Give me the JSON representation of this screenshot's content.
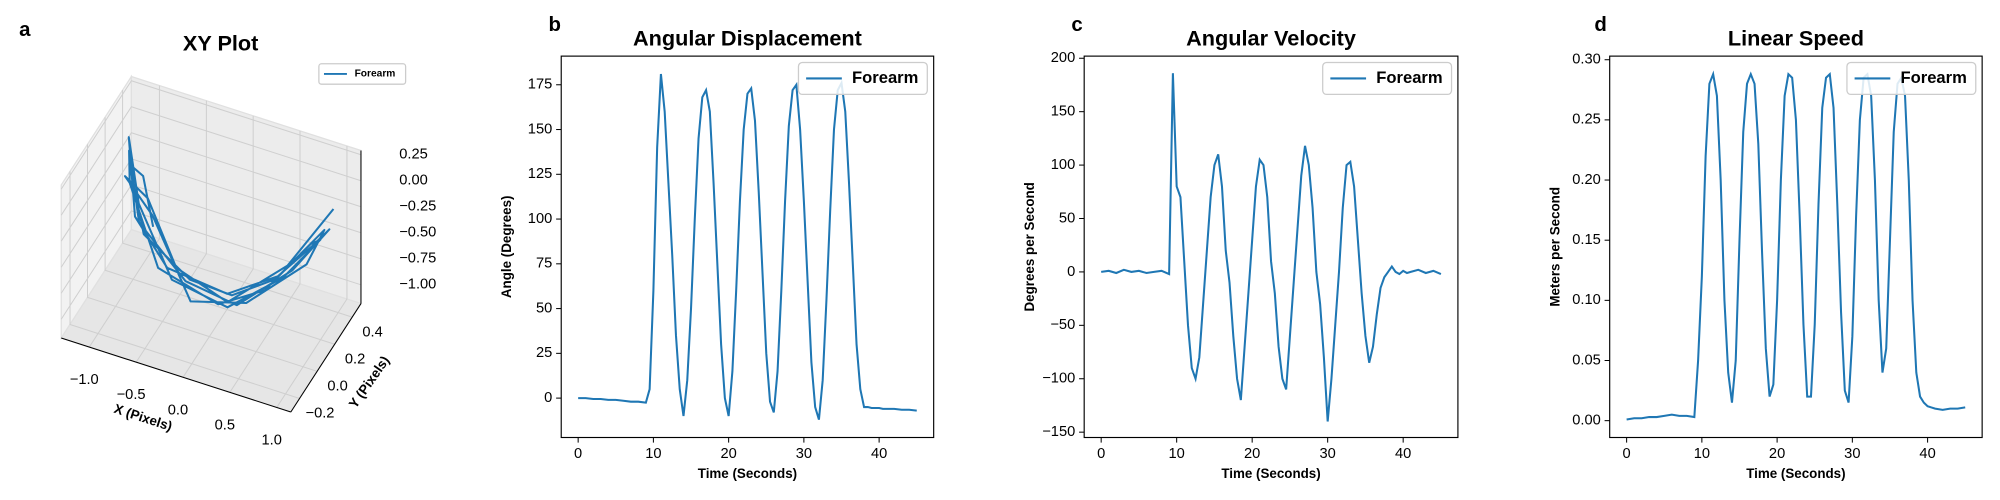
{
  "chart_data": [
    {
      "type": "line3d",
      "panel_label": "a",
      "title": "XY Plot",
      "xlabel": "X (Pixels)",
      "ylabel": "Y (Pixels)",
      "legend": "upper right",
      "xlim": [
        -1.3,
        1.15
      ],
      "ylim": [
        -0.3,
        0.5
      ],
      "zlim": [
        -1.18,
        0.29
      ],
      "xticks": [
        {
          "value": -1.0,
          "label": "−1.0"
        },
        {
          "value": -0.5,
          "label": "−0.5"
        },
        {
          "value": 0.0,
          "label": "0.0"
        },
        {
          "value": 0.5,
          "label": "0.5"
        },
        {
          "value": 1.0,
          "label": "1.0"
        }
      ],
      "yticks": [
        {
          "value": -0.2,
          "label": "−0.2"
        },
        {
          "value": 0.0,
          "label": "0.0"
        },
        {
          "value": 0.2,
          "label": "0.2"
        },
        {
          "value": 0.4,
          "label": "0.4"
        }
      ],
      "zticks": [
        {
          "value": 0.25,
          "label": "0.25"
        },
        {
          "value": 0.0,
          "label": "0.00"
        },
        {
          "value": -0.25,
          "label": "−0.25"
        },
        {
          "value": -0.5,
          "label": "−0.50"
        },
        {
          "value": -0.75,
          "label": "−0.75"
        },
        {
          "value": -1.0,
          "label": "−1.00"
        }
      ],
      "series": [
        {
          "name": "Forearm",
          "color": "#1f77b4",
          "x": [
            -0.6,
            -0.8,
            -0.9,
            -0.7,
            -0.3,
            0.1,
            0.5,
            0.85,
            1.0,
            0.7,
            0.2,
            -0.3,
            -0.75,
            -0.95,
            -0.85,
            -0.5,
            0.0,
            0.45,
            0.8,
            0.95,
            0.6,
            0.1,
            -0.4,
            -0.8,
            -1.0,
            -0.7,
            -0.45,
            0.05,
            0.55,
            0.9,
            0.85,
            0.3,
            -0.2,
            -0.7,
            -0.9,
            -0.75,
            -0.4,
            0.1,
            0.6,
            0.95
          ],
          "y": [
            0.0,
            0.1,
            0.05,
            0.0,
            0.1,
            0.15,
            0.2,
            0.25,
            0.3,
            0.2,
            0.1,
            0.05,
            0.0,
            0.1,
            0.0,
            -0.05,
            0.1,
            0.15,
            0.3,
            0.25,
            0.2,
            0.1,
            0.0,
            0.05,
            0.15,
            -0.1,
            0.0,
            0.15,
            0.2,
            0.35,
            0.2,
            0.1,
            0.0,
            0.1,
            0.0,
            0.1,
            0.05,
            0.1,
            0.25,
            0.4
          ],
          "z": [
            -0.3,
            0.0,
            0.15,
            -0.4,
            -0.85,
            -0.95,
            -0.75,
            -0.4,
            -0.25,
            -0.6,
            -0.95,
            -0.8,
            -0.3,
            0.2,
            0.05,
            -0.6,
            -1.0,
            -0.8,
            -0.45,
            -0.3,
            -0.7,
            -1.0,
            -0.75,
            -0.2,
            0.25,
            -0.1,
            -0.65,
            -0.95,
            -0.7,
            -0.35,
            -0.5,
            -0.9,
            -0.9,
            -0.35,
            0.1,
            -0.2,
            -0.7,
            -0.95,
            -0.65,
            -0.2
          ]
        }
      ]
    },
    {
      "type": "line",
      "panel_label": "b",
      "title": "Angular Displacement",
      "xlabel": "Time (Seconds)",
      "ylabel": "Angle (Degrees)",
      "legend": "upper right",
      "xlim": [
        -2.25,
        47.25
      ],
      "ylim": [
        -22,
        191
      ],
      "xticks": [
        0,
        10,
        20,
        30,
        40
      ],
      "yticks": [
        0,
        25,
        50,
        75,
        100,
        125,
        150,
        175
      ],
      "x": [
        0,
        1,
        2,
        3,
        4,
        5,
        6,
        7,
        8,
        9,
        9.5,
        10,
        10.5,
        11,
        11.5,
        12,
        12.5,
        13,
        13.5,
        14,
        14.5,
        15,
        15.5,
        16,
        16.5,
        17,
        17.5,
        18,
        18.5,
        19,
        19.5,
        20,
        20.5,
        21,
        21.5,
        22,
        22.5,
        23,
        23.5,
        24,
        24.5,
        25,
        25.5,
        26,
        26.5,
        27,
        27.5,
        28,
        28.5,
        29,
        29.5,
        30,
        30.5,
        31,
        31.5,
        32,
        32.5,
        33,
        33.5,
        34,
        34.5,
        35,
        35.5,
        36,
        36.5,
        37,
        37.5,
        38,
        38.5,
        39,
        39.5,
        40,
        40.5,
        41,
        42,
        43,
        44,
        45
      ],
      "series": [
        {
          "name": "Forearm",
          "color": "#1f77b4",
          "values": [
            0,
            0,
            -0.5,
            -0.5,
            -1,
            -1,
            -1.5,
            -2,
            -2,
            -2.5,
            5,
            60,
            140,
            181,
            160,
            120,
            80,
            35,
            5,
            -10,
            10,
            50,
            100,
            145,
            168,
            172,
            160,
            120,
            75,
            30,
            0,
            -10,
            15,
            60,
            110,
            150,
            170,
            173,
            155,
            115,
            70,
            25,
            -2,
            -8,
            15,
            60,
            110,
            152,
            172,
            175,
            150,
            110,
            65,
            20,
            -5,
            -12,
            10,
            55,
            105,
            150,
            172,
            176,
            160,
            120,
            75,
            30,
            5,
            -5,
            -5,
            -5.5,
            -5.5,
            -5.5,
            -6,
            -6,
            -6,
            -6.5,
            -6.5,
            -7
          ]
        }
      ]
    },
    {
      "type": "line",
      "panel_label": "c",
      "title": "Angular Velocity",
      "xlabel": "Time (Seconds)",
      "ylabel": "Degrees per Second",
      "legend": "upper right",
      "xlim": [
        -2.25,
        47.25
      ],
      "ylim": [
        -155,
        202
      ],
      "xticks": [
        0,
        10,
        20,
        30,
        40
      ],
      "yticks": [
        {
          "value": -150,
          "label": "−150"
        },
        {
          "value": -100,
          "label": "−100"
        },
        {
          "value": -50,
          "label": "−50"
        },
        0,
        50,
        100,
        150,
        200
      ],
      "x": [
        0,
        1,
        2,
        3,
        4,
        5,
        6,
        7,
        8,
        9,
        9.5,
        10,
        10.5,
        11,
        11.5,
        12,
        12.5,
        13,
        13.5,
        14,
        14.5,
        15,
        15.5,
        16,
        16.5,
        17,
        17.5,
        18,
        18.5,
        19,
        19.5,
        20,
        20.5,
        21,
        21.5,
        22,
        22.5,
        23,
        23.5,
        24,
        24.5,
        25,
        25.5,
        26,
        26.5,
        27,
        27.5,
        28,
        28.5,
        29,
        29.5,
        30,
        30.5,
        31,
        31.5,
        32,
        32.5,
        33,
        33.5,
        34,
        34.5,
        35,
        35.5,
        36,
        36.5,
        37,
        37.5,
        38,
        38.5,
        39,
        39.5,
        40,
        40.5,
        41,
        42,
        43,
        44,
        45
      ],
      "series": [
        {
          "name": "Forearm",
          "color": "#1f77b4",
          "values": [
            0,
            1,
            -1,
            2,
            0,
            1,
            -1,
            0,
            1,
            -2,
            186,
            80,
            70,
            10,
            -50,
            -90,
            -100,
            -80,
            -30,
            20,
            70,
            100,
            110,
            80,
            20,
            -10,
            -60,
            -100,
            -120,
            -70,
            -20,
            30,
            80,
            105,
            100,
            70,
            10,
            -20,
            -70,
            -100,
            -110,
            -60,
            -10,
            40,
            90,
            118,
            100,
            60,
            0,
            -30,
            -80,
            -140,
            -100,
            -50,
            0,
            60,
            100,
            103,
            80,
            30,
            -20,
            -60,
            -85,
            -70,
            -40,
            -15,
            -5,
            0,
            5,
            0,
            -2,
            1,
            -1,
            0,
            2,
            -1,
            1,
            -2
          ]
        }
      ]
    },
    {
      "type": "line",
      "panel_label": "d",
      "title": "Linear Speed",
      "xlabel": "Time (Seconds)",
      "ylabel": "Meters per Second",
      "legend": "upper right",
      "xlim": [
        -2.25,
        47.25
      ],
      "ylim": [
        -0.014,
        0.303
      ],
      "xticks": [
        0,
        10,
        20,
        30,
        40
      ],
      "yticks": [
        {
          "value": 0,
          "label": "0.00"
        },
        {
          "value": 0.05,
          "label": "0.05"
        },
        {
          "value": 0.1,
          "label": "0.10"
        },
        {
          "value": 0.15,
          "label": "0.15"
        },
        {
          "value": 0.2,
          "label": "0.20"
        },
        {
          "value": 0.25,
          "label": "0.25"
        },
        {
          "value": 0.3,
          "label": "0.30"
        }
      ],
      "x": [
        0,
        1,
        2,
        3,
        4,
        5,
        6,
        7,
        8,
        9,
        9.5,
        10,
        10.5,
        11,
        11.5,
        12,
        12.5,
        13,
        13.5,
        14,
        14.5,
        15,
        15.5,
        16,
        16.5,
        17,
        17.5,
        18,
        18.5,
        19,
        19.5,
        20,
        20.5,
        21,
        21.5,
        22,
        22.5,
        23,
        23.5,
        24,
        24.5,
        25,
        25.5,
        26,
        26.5,
        27,
        27.5,
        28,
        28.5,
        29,
        29.5,
        30,
        30.5,
        31,
        31.5,
        32,
        32.5,
        33,
        33.5,
        34,
        34.5,
        35,
        35.5,
        36,
        36.5,
        37,
        37.5,
        38,
        38.5,
        39,
        39.5,
        40,
        40.5,
        41,
        42,
        43,
        44,
        45
      ],
      "series": [
        {
          "name": "Forearm",
          "color": "#1f77b4",
          "values": [
            0.001,
            0.002,
            0.002,
            0.003,
            0.003,
            0.004,
            0.005,
            0.004,
            0.004,
            0.003,
            0.05,
            0.12,
            0.22,
            0.28,
            0.288,
            0.27,
            0.2,
            0.1,
            0.04,
            0.015,
            0.05,
            0.15,
            0.24,
            0.28,
            0.288,
            0.28,
            0.23,
            0.14,
            0.06,
            0.02,
            0.03,
            0.1,
            0.2,
            0.27,
            0.288,
            0.285,
            0.25,
            0.17,
            0.08,
            0.02,
            0.02,
            0.08,
            0.18,
            0.26,
            0.285,
            0.288,
            0.26,
            0.18,
            0.09,
            0.025,
            0.015,
            0.07,
            0.17,
            0.25,
            0.285,
            0.288,
            0.27,
            0.2,
            0.1,
            0.04,
            0.06,
            0.15,
            0.24,
            0.28,
            0.285,
            0.27,
            0.2,
            0.1,
            0.04,
            0.02,
            0.015,
            0.012,
            0.011,
            0.01,
            0.009,
            0.01,
            0.01,
            0.011
          ]
        }
      ]
    }
  ]
}
